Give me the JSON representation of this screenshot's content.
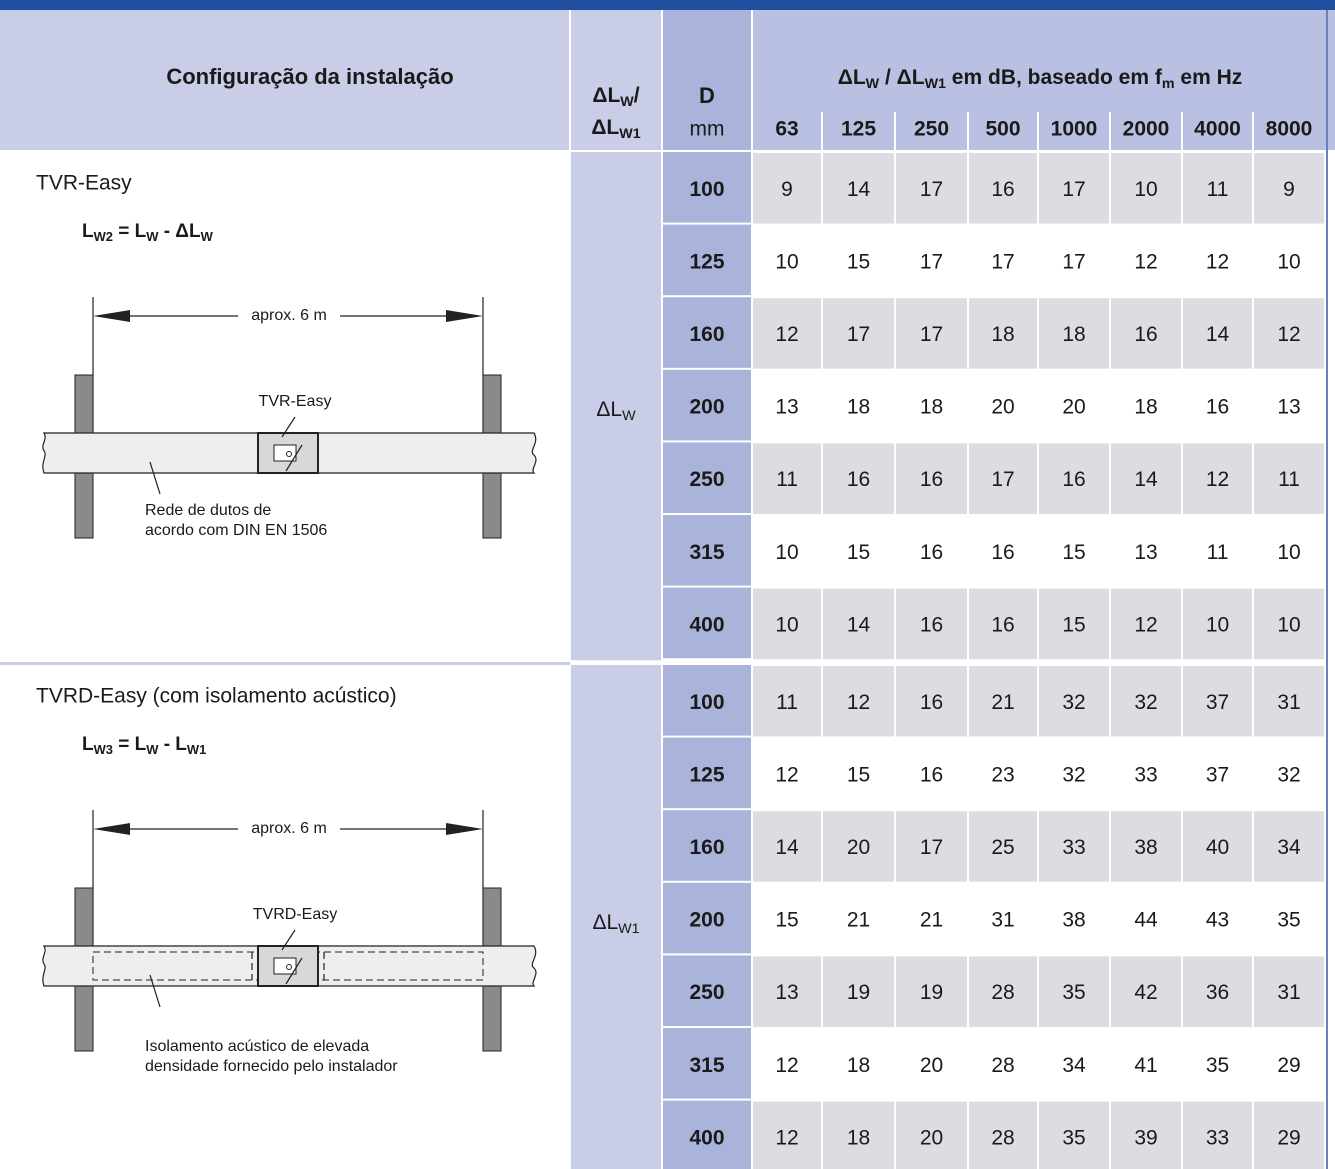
{
  "table": {
    "headers": {
      "config": "Configuração da instalação",
      "delta": [
        [
          {
            "t": "ΔL"
          },
          {
            "s": "W"
          },
          {
            "t": "/"
          }
        ],
        [
          {
            "t": "ΔL"
          },
          {
            "s": "W1"
          }
        ]
      ],
      "d": "D",
      "d_unit": "mm",
      "span": [
        {
          "t": "ΔL"
        },
        {
          "s": "W"
        },
        {
          "t": " / ΔL"
        },
        {
          "s": "W1"
        },
        {
          "t": " em dB, baseado em f"
        },
        {
          "s": "m"
        },
        {
          "t": " em Hz"
        }
      ],
      "frequencies": [
        63,
        125,
        250,
        500,
        1000,
        2000,
        4000,
        8000
      ]
    },
    "groups": [
      {
        "title": "TVR-Easy",
        "formula": [
          {
            "t": "L"
          },
          {
            "s": "W2"
          },
          {
            "t": " = L"
          },
          {
            "s": "W"
          },
          {
            "t": " - ΔL"
          },
          {
            "s": "W"
          }
        ],
        "quantity": [
          {
            "t": "ΔL"
          },
          {
            "s": "W"
          }
        ],
        "diagram": {
          "length": "aprox. 6 m",
          "device": "TVR-Easy",
          "note": [
            "Rede de dutos de",
            "acordo com DIN EN 1506"
          ]
        },
        "rows": [
          {
            "d": 100,
            "values": [
              9,
              14,
              17,
              16,
              17,
              10,
              11,
              9
            ]
          },
          {
            "d": 125,
            "values": [
              10,
              15,
              17,
              17,
              17,
              12,
              12,
              10
            ]
          },
          {
            "d": 160,
            "values": [
              12,
              17,
              17,
              18,
              18,
              16,
              14,
              12
            ]
          },
          {
            "d": 200,
            "values": [
              13,
              18,
              18,
              20,
              20,
              18,
              16,
              13
            ]
          },
          {
            "d": 250,
            "values": [
              11,
              16,
              16,
              17,
              16,
              14,
              12,
              11
            ]
          },
          {
            "d": 315,
            "values": [
              10,
              15,
              16,
              16,
              15,
              13,
              11,
              10
            ]
          },
          {
            "d": 400,
            "values": [
              10,
              14,
              16,
              16,
              15,
              12,
              10,
              10
            ]
          }
        ]
      },
      {
        "title": "TVRD-Easy (com isolamento acústico)",
        "formula": [
          {
            "t": "L"
          },
          {
            "s": "W3"
          },
          {
            "t": " = L"
          },
          {
            "s": "W"
          },
          {
            "t": " -  L"
          },
          {
            "s": "W1"
          }
        ],
        "quantity": [
          {
            "t": "ΔL"
          },
          {
            "s": "W1"
          }
        ],
        "diagram": {
          "length": "aprox. 6 m",
          "device": "TVRD-Easy",
          "note": [
            "Isolamento acústico de elevada",
            "densidade fornecido pelo instalador"
          ]
        },
        "rows": [
          {
            "d": 100,
            "values": [
              11,
              12,
              16,
              21,
              32,
              32,
              37,
              31
            ]
          },
          {
            "d": 125,
            "values": [
              12,
              15,
              16,
              23,
              32,
              33,
              37,
              32
            ]
          },
          {
            "d": 160,
            "values": [
              14,
              20,
              17,
              25,
              33,
              38,
              40,
              34
            ]
          },
          {
            "d": 200,
            "values": [
              15,
              21,
              21,
              31,
              38,
              44,
              43,
              35
            ]
          },
          {
            "d": 250,
            "values": [
              13,
              19,
              19,
              28,
              35,
              42,
              36,
              31
            ]
          },
          {
            "d": 315,
            "values": [
              12,
              18,
              20,
              28,
              34,
              41,
              35,
              29
            ]
          },
          {
            "d": 400,
            "values": [
              12,
              18,
              20,
              28,
              35,
              39,
              33,
              29
            ]
          }
        ]
      }
    ]
  }
}
